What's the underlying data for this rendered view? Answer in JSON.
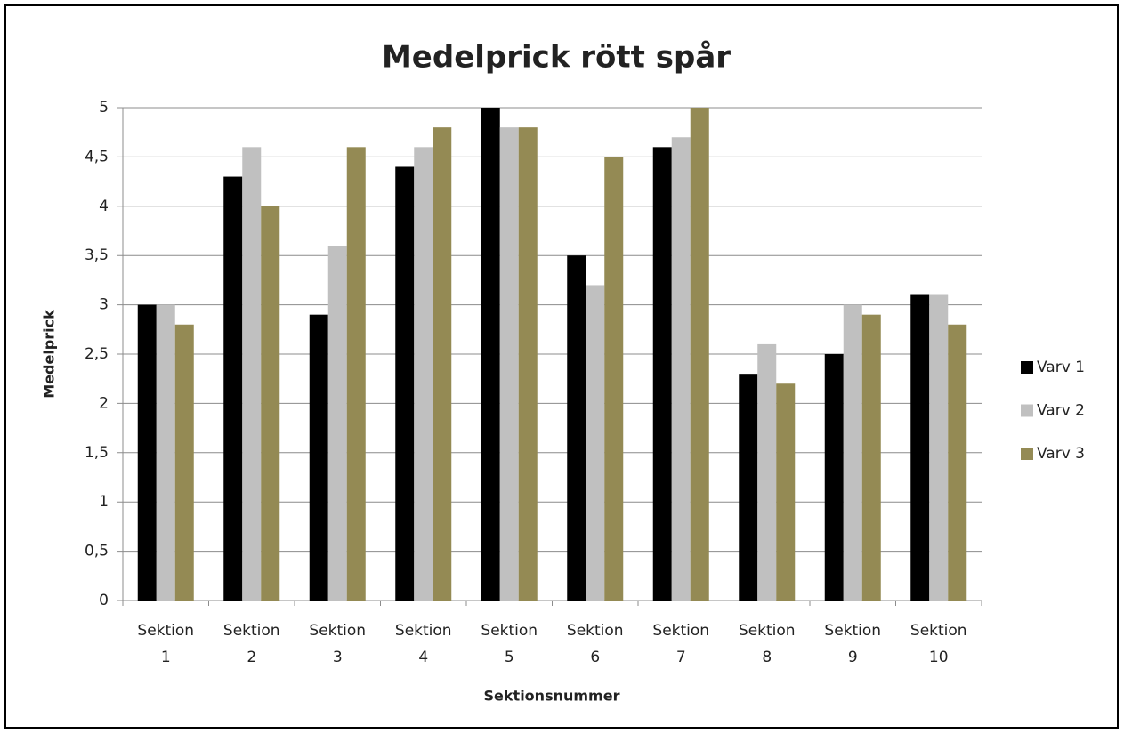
{
  "chart_data": {
    "type": "bar",
    "title": "Medelprick rött spår",
    "x_label": "Sektionsnummer",
    "y_label": "Medelprick",
    "categories": [
      "Sektion 1",
      "Sektion 2",
      "Sektion 3",
      "Sektion 4",
      "Sektion 5",
      "Sektion 6",
      "Sektion 7",
      "Sektion 8",
      "Sektion 9",
      "Sektion 10"
    ],
    "series": [
      {
        "name": "Varv 1",
        "color": "#000000",
        "values": [
          3.0,
          4.3,
          2.9,
          4.4,
          5.0,
          3.5,
          4.6,
          2.3,
          2.5,
          3.1
        ]
      },
      {
        "name": "Varv 2",
        "color": "#c0c0c0",
        "values": [
          3.0,
          4.6,
          3.6,
          4.6,
          4.8,
          3.2,
          4.7,
          2.6,
          3.0,
          3.1
        ]
      },
      {
        "name": "Varv 3",
        "color": "#948a54",
        "values": [
          2.8,
          4.0,
          4.6,
          4.8,
          4.8,
          4.5,
          5.0,
          2.2,
          2.9,
          2.8
        ]
      }
    ],
    "ylim": [
      0,
      5
    ],
    "yticks": [
      0,
      {
        "value": 0.5,
        "label": "0,5"
      },
      1,
      {
        "value": 1.5,
        "label": "1,5"
      },
      2,
      {
        "value": 2.5,
        "label": "2,5"
      },
      3,
      {
        "value": 3.5,
        "label": "3,5"
      },
      4,
      {
        "value": 4.5,
        "label": "4,5"
      },
      5
    ],
    "grid": true,
    "legend": "right"
  }
}
